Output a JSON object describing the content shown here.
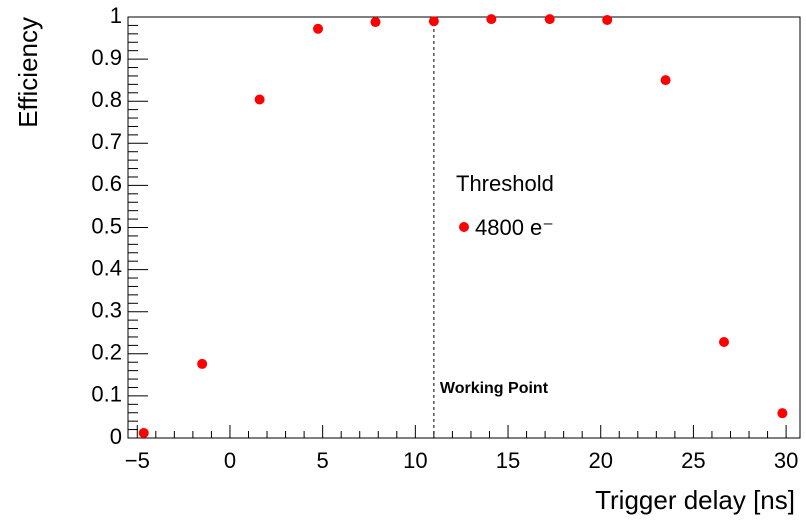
{
  "chart_data": {
    "type": "scatter",
    "x_label": "Trigger delay [ns]",
    "y_label": "Efficiency",
    "legend_title": "Threshold",
    "series": [
      {
        "name": "4800 e⁻",
        "color": "#ff0000",
        "x": [
          -4.65,
          -1.5,
          1.6,
          4.75,
          7.85,
          11.0,
          14.1,
          17.25,
          20.35,
          23.5,
          26.65,
          29.8
        ],
        "values": [
          0.012,
          0.176,
          0.804,
          0.972,
          0.988,
          0.99,
          0.995,
          0.995,
          0.993,
          0.85,
          0.228,
          0.059
        ]
      }
    ],
    "vline": {
      "x": 11,
      "label": "Working Point"
    },
    "xlim": [
      -5.5,
      30.75
    ],
    "ylim": [
      0,
      1
    ],
    "xticks": [
      {
        "value": -5,
        "label": "−5"
      },
      0,
      5,
      10,
      15,
      20,
      25,
      30
    ],
    "yticks": [
      0,
      0.1,
      0.2,
      0.3,
      0.4,
      0.5,
      0.6,
      0.7,
      0.8,
      0.9,
      1
    ]
  }
}
